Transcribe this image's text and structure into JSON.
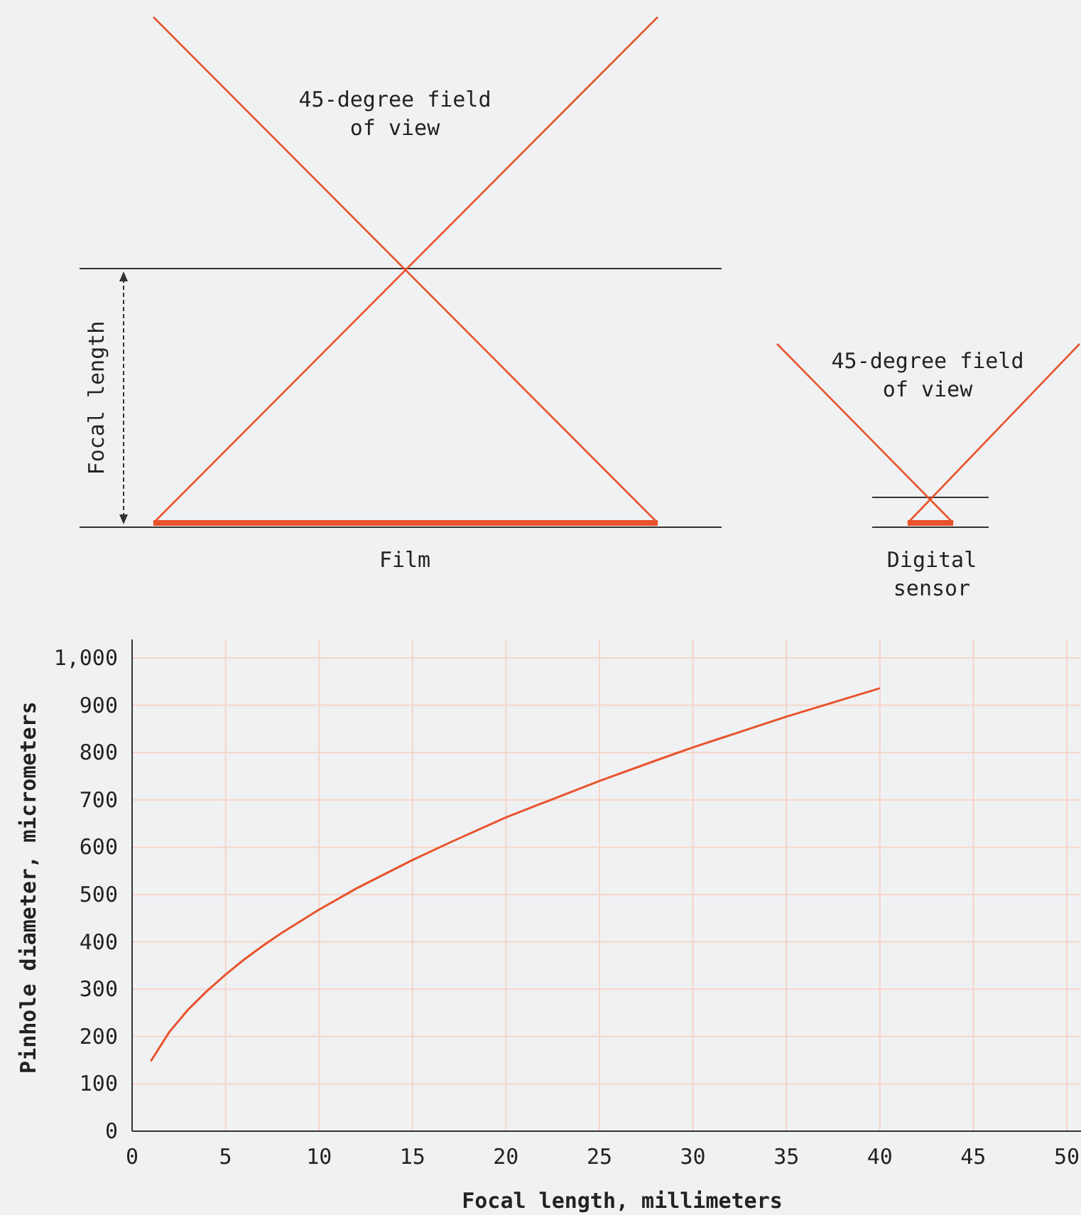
{
  "chart_data": {
    "type": "line",
    "xlabel": "Focal length, millimeters",
    "ylabel": "Pinhole diameter, micrometers",
    "x": [
      1,
      2,
      3,
      4,
      5,
      6,
      7,
      8,
      10,
      12,
      15,
      17,
      20,
      22,
      25,
      28,
      30,
      32,
      35,
      38,
      40
    ],
    "series": [
      {
        "color": "#e8532b",
        "values": [
          148,
          210,
          257,
          296,
          331,
          363,
          392,
          419,
          468,
          513,
          573,
          610,
          663,
          694,
          740,
          783,
          811,
          837,
          876,
          912,
          936
        ]
      }
    ],
    "xlim": [
      0,
      50
    ],
    "xticks": [
      0,
      5,
      10,
      15,
      20,
      25,
      30,
      35,
      40,
      45,
      50
    ],
    "ylim": [
      0,
      1000
    ],
    "yticks": [
      0,
      100,
      200,
      300,
      400,
      500,
      600,
      700,
      800,
      900,
      {
        "value": 1000,
        "label": "1,000"
      }
    ],
    "grid": true,
    "marker": "none",
    "line_style": "solid",
    "annotations": [
      "45-degree field of view",
      "Focal length",
      "Film",
      "45-degree field of view",
      "Digital sensor"
    ]
  }
}
